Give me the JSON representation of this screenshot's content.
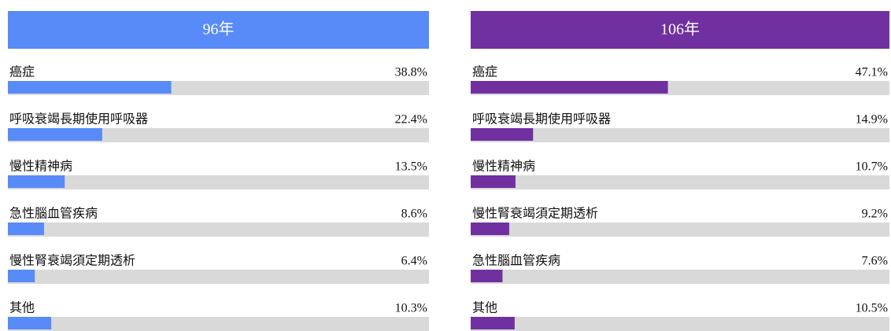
{
  "chart_data": [
    {
      "type": "bar",
      "title": "96年",
      "color": "#588bf7",
      "header_color": "#588bf7",
      "categories": [
        "癌症",
        "呼吸衰竭長期使用呼吸器",
        "慢性精神病",
        "急性腦血管疾病",
        "慢性腎衰竭須定期透析",
        "其他"
      ],
      "values": [
        38.8,
        22.4,
        13.5,
        8.6,
        6.4,
        10.3
      ],
      "value_labels": [
        "38.8%",
        "22.4%",
        "13.5%",
        "8.6%",
        "6.4%",
        "10.3%"
      ],
      "xlim": [
        0,
        100
      ]
    },
    {
      "type": "bar",
      "title": "106年",
      "color": "#7030a0",
      "header_color": "#7030a0",
      "categories": [
        "癌症",
        "呼吸衰竭長期使用呼吸器",
        "慢性精神病",
        "慢性腎衰竭須定期透析",
        "急性腦血管疾病",
        "其他"
      ],
      "values": [
        47.1,
        14.9,
        10.7,
        9.2,
        7.6,
        10.5
      ],
      "value_labels": [
        "47.1%",
        "14.9%",
        "10.7%",
        "9.2%",
        "7.6%",
        "10.5%"
      ],
      "xlim": [
        0,
        100
      ]
    }
  ]
}
